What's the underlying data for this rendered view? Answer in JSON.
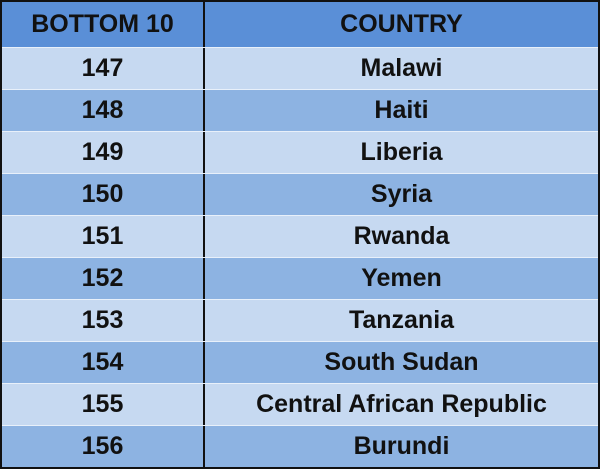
{
  "table": {
    "header": [
      "BOTTOM 10",
      "COUNTRY"
    ],
    "rows": [
      [
        147,
        "Malawi"
      ],
      [
        148,
        "Haiti"
      ],
      [
        149,
        "Liberia"
      ],
      [
        150,
        "Syria"
      ],
      [
        151,
        "Rwanda"
      ],
      [
        152,
        "Yemen"
      ],
      [
        153,
        "Tanzania"
      ],
      [
        154,
        "South Sudan"
      ],
      [
        155,
        "Central African Republic"
      ],
      [
        156,
        "Burundi"
      ]
    ]
  }
}
